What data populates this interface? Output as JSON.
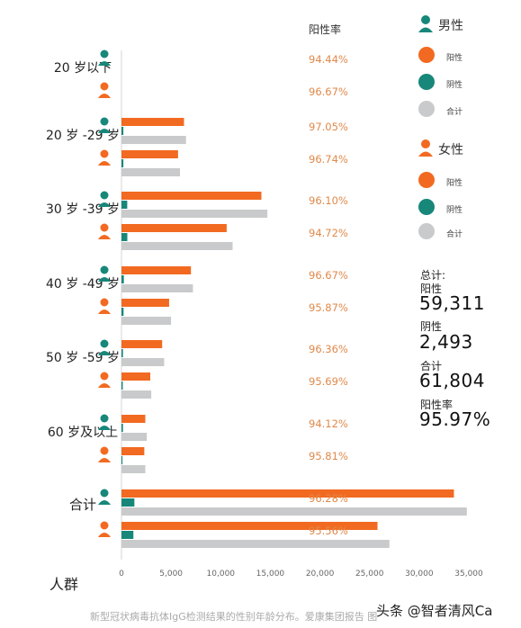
{
  "chart_data": {
    "type": "bar",
    "orientation": "horizontal",
    "rate_header": "阳性率",
    "ylabel": "人群",
    "xlim": [
      0,
      35000
    ],
    "xticks": [
      "0",
      "5,000",
      "10,000",
      "15,000",
      "20,000",
      "25,000",
      "30,000",
      "35,000"
    ],
    "groups": [
      {
        "label": "20 岁以下",
        "rows": [
          {
            "sex": "male",
            "positive": 0,
            "negative": 0,
            "total": 0,
            "rate": "94.44%"
          },
          {
            "sex": "female",
            "positive": 0,
            "negative": 0,
            "total": 0,
            "rate": "96.67%"
          }
        ]
      },
      {
        "label": "20 岁 -29 岁",
        "rows": [
          {
            "sex": "male",
            "positive": 6300,
            "negative": 190,
            "total": 6500,
            "rate": "97.05%"
          },
          {
            "sex": "female",
            "positive": 5700,
            "negative": 190,
            "total": 5900,
            "rate": "96.74%"
          }
        ]
      },
      {
        "label": "30 岁 -39 岁",
        "rows": [
          {
            "sex": "male",
            "positive": 14100,
            "negative": 580,
            "total": 14700,
            "rate": "96.10%"
          },
          {
            "sex": "female",
            "positive": 10600,
            "negative": 590,
            "total": 11200,
            "rate": "94.72%"
          }
        ]
      },
      {
        "label": "40 岁 -49 岁",
        "rows": [
          {
            "sex": "male",
            "positive": 7000,
            "negative": 240,
            "total": 7200,
            "rate": "96.67%"
          },
          {
            "sex": "female",
            "positive": 4800,
            "negative": 210,
            "total": 5000,
            "rate": "95.87%"
          }
        ]
      },
      {
        "label": "50 岁 -59 岁",
        "rows": [
          {
            "sex": "male",
            "positive": 4100,
            "negative": 150,
            "total": 4300,
            "rate": "96.36%"
          },
          {
            "sex": "female",
            "positive": 2900,
            "negative": 130,
            "total": 3000,
            "rate": "95.69%"
          }
        ]
      },
      {
        "label": "60 岁及以上",
        "rows": [
          {
            "sex": "male",
            "positive": 2400,
            "negative": 150,
            "total": 2550,
            "rate": "94.12%"
          },
          {
            "sex": "female",
            "positive": 2300,
            "negative": 100,
            "total": 2400,
            "rate": "95.81%"
          }
        ]
      },
      {
        "label": "合计",
        "rows": [
          {
            "sex": "male",
            "positive": 33500,
            "negative": 1300,
            "total": 34800,
            "rate": "96.28%"
          },
          {
            "sex": "female",
            "positive": 25800,
            "negative": 1200,
            "total": 27000,
            "rate": "95.56%"
          }
        ]
      }
    ],
    "series": [
      {
        "name": "阳性",
        "color": "#f26a21"
      },
      {
        "name": "阴性",
        "color": "#17877a"
      },
      {
        "name": "合计",
        "color": "#c9cacb"
      }
    ],
    "legend": {
      "male_title": "男性",
      "female_title": "女性",
      "items": [
        "阳性",
        "阴性",
        "合计"
      ],
      "placement": "right"
    },
    "totals": {
      "heading": "总计:",
      "positive_label": "阳性",
      "positive_value": "59,311",
      "negative_label": "阴性",
      "negative_value": "2,493",
      "total_label": "合计",
      "total_value": "61,804",
      "rate_label": "阳性率",
      "rate_value": "95.97%"
    }
  },
  "caption": "新型冠状病毒抗体IgG检测结果的性别年龄分布。爱康集团报告 图",
  "watermark": "头条 @智者清风Ca",
  "colors": {
    "positive": "#f26a21",
    "negative": "#17877a",
    "total": "#c9cacb",
    "rate_text": "#e0894a",
    "male_icon": "#17877a",
    "female_icon": "#f26a21"
  },
  "icons": {
    "male": "male-person-icon",
    "female": "female-person-icon"
  }
}
